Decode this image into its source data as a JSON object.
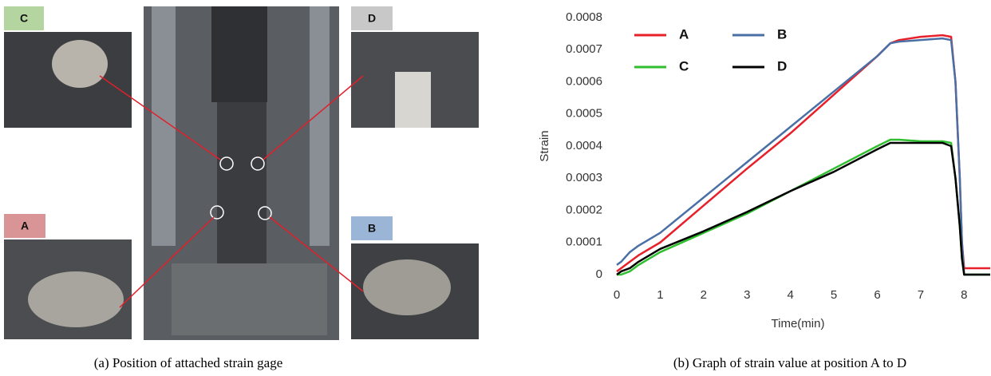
{
  "photo_labels": [
    "C",
    "D",
    "A",
    "B"
  ],
  "captions": [
    "(a) Position of attached strain gage",
    "(b) Graph of strain value at position A to D"
  ],
  "chart_data": {
    "type": "line",
    "x_label": "Time(min)",
    "y_label": "Strain",
    "x": [
      0,
      0.1,
      0.3,
      0.5,
      1,
      2,
      3,
      4,
      5,
      6,
      6.3,
      6.5,
      7,
      7.5,
      7.7,
      7.8,
      7.9,
      7.95,
      8.0,
      8.6
    ],
    "series": [
      {
        "name": "A",
        "color": "#e8202a",
        "values": [
          1e-05,
          2e-05,
          4e-05,
          6e-05,
          0.0001,
          0.000215,
          0.00033,
          0.00044,
          0.00056,
          0.00068,
          0.00072,
          0.00073,
          0.00074,
          0.000745,
          0.00074,
          0.0006,
          0.0003,
          0.0001,
          2e-05,
          2e-05
        ]
      },
      {
        "name": "B",
        "color": "#4a6fa5",
        "values": [
          3e-05,
          4e-05,
          7e-05,
          9e-05,
          0.00013,
          0.00024,
          0.00035,
          0.00046,
          0.00057,
          0.00068,
          0.00072,
          0.000725,
          0.00073,
          0.000735,
          0.00073,
          0.0006,
          0.0003,
          0.0001,
          0,
          0
        ]
      },
      {
        "name": "C",
        "color": "#2fbf2f",
        "values": [
          0,
          0,
          1e-05,
          3e-05,
          7e-05,
          0.00013,
          0.00019,
          0.00026,
          0.00033,
          0.0004,
          0.00042,
          0.00042,
          0.000415,
          0.000415,
          0.00041,
          0.0003,
          0.00015,
          5e-05,
          0,
          0
        ]
      },
      {
        "name": "D",
        "color": "#000000",
        "values": [
          0,
          1e-05,
          2e-05,
          4e-05,
          8e-05,
          0.000135,
          0.000195,
          0.00026,
          0.00032,
          0.00039,
          0.00041,
          0.00041,
          0.00041,
          0.00041,
          0.0004,
          0.0003,
          0.00015,
          5e-05,
          0,
          0
        ]
      }
    ],
    "xlim": [
      0,
      8.6
    ],
    "xticks": [
      0,
      1,
      2,
      3,
      4,
      5,
      6,
      7,
      8
    ],
    "ylim": [
      0,
      0.0008
    ],
    "yticks": [
      0,
      0.0001,
      0.0002,
      0.0003,
      0.0004,
      0.0005,
      0.0006,
      0.0007,
      0.0008
    ],
    "grid": false,
    "legend": "upper left"
  }
}
